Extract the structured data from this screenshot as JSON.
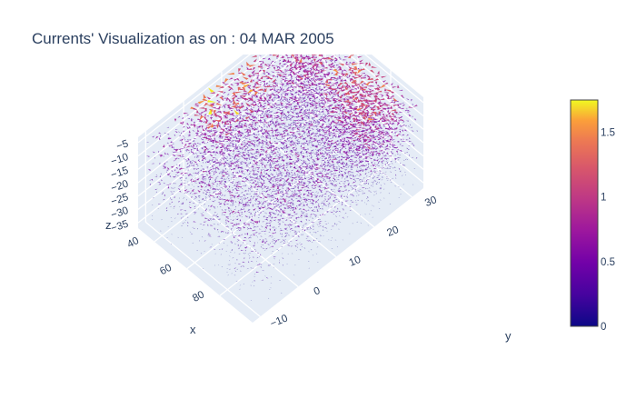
{
  "title": "Currents' Visualization as on : 04 MAR 2005",
  "chart_data": {
    "type": "3d-cone",
    "title": "Currents' Visualization as on : 04 MAR 2005",
    "xlabel": "x",
    "ylabel": "y",
    "zlabel": "z",
    "x_ticks": [
      "40",
      "60",
      "80"
    ],
    "y_ticks": [
      "−10",
      "0",
      "10",
      "20",
      "30"
    ],
    "z_ticks": [
      "−5",
      "−10",
      "−15",
      "−20",
      "−25",
      "−30",
      "−35"
    ],
    "x_range": [
      30,
      100
    ],
    "y_range": [
      -12,
      33
    ],
    "z_range": [
      -37,
      -3
    ],
    "z_levels": [
      -5,
      -10,
      -15,
      -20,
      -25,
      -30,
      -35
    ],
    "colorscale": "plasma",
    "colorbar": {
      "ticks": [
        "0",
        "0.5",
        "1",
        "1.5"
      ],
      "range": [
        0,
        1.75
      ]
    },
    "grid": true,
    "colors": {
      "scene_bg": "#e5ecf6",
      "grid": "#ffffff",
      "text": "#2a3f5f"
    }
  }
}
